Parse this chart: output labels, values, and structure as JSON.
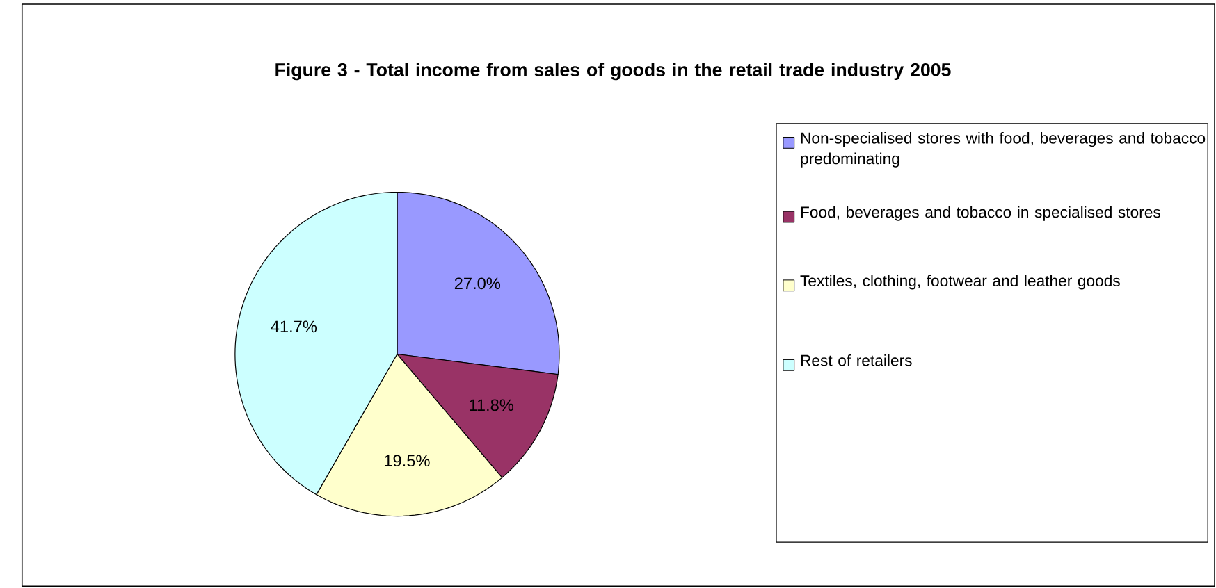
{
  "chart_data": {
    "type": "pie",
    "title": "Figure 3 - Total income from sales of goods in the retail trade industry 2005",
    "categories": [
      "Non-specialised stores with food, beverages and tobacco predominating",
      "Food, beverages and tobacco in specialised stores",
      "Textiles, clothing, footwear and leather goods",
      "Rest of retailers"
    ],
    "values": [
      27.0,
      11.8,
      19.5,
      41.7
    ],
    "value_labels": [
      "27.0%",
      "11.8%",
      "19.5%",
      "41.7%"
    ],
    "colors": [
      "#9999ff",
      "#993366",
      "#ffffcc",
      "#ccffff"
    ],
    "legend": "right"
  }
}
